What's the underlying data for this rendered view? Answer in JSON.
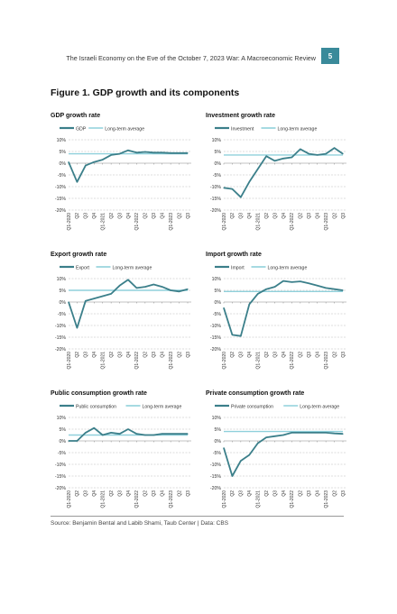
{
  "header": {
    "title": "The Israeli Economy on the Eve of the October 7, 2023 War: A Macroeconomic Review",
    "page": "5"
  },
  "figure": {
    "title": "Figure 1. GDP growth and its components"
  },
  "footer": {
    "source": "Source: Benjamin Bental and Labib Shami, Taub Center | Data: CBS"
  },
  "colors": {
    "series": "#3b7f8a",
    "average": "#8fd0db",
    "grid": "#bbbbbb",
    "axis": "#888888"
  },
  "chart_data": [
    {
      "type": "line",
      "title": "GDP growth rate",
      "ylim": [
        -20,
        10
      ],
      "yticks": [
        "10%",
        "5%",
        "0%",
        "-5%",
        "-10%",
        "-15%",
        "-20%"
      ],
      "categories": [
        "Q1-2020",
        "Q2",
        "Q3",
        "Q4",
        "Q1-2021",
        "Q2",
        "Q3",
        "Q4",
        "Q1-2022",
        "Q2",
        "Q3",
        "Q4",
        "Q1-2023",
        "Q2",
        "Q3"
      ],
      "series": [
        {
          "name": "GDP",
          "values": [
            0.5,
            -8,
            -1,
            0.5,
            1.5,
            3.5,
            4,
            5.5,
            4.5,
            4.8,
            4.5,
            4.5,
            4.3,
            4.3,
            4.3
          ]
        },
        {
          "name": "Long-term average",
          "values": [
            4,
            4,
            4,
            4,
            4,
            4,
            4,
            4,
            4,
            4,
            4,
            4,
            4,
            4,
            4
          ]
        }
      ]
    },
    {
      "type": "line",
      "title": "Investment growth rate",
      "ylim": [
        -20,
        10
      ],
      "yticks": [
        "10%",
        "5%",
        "0%",
        "-5%",
        "-10%",
        "-15%",
        "-20%"
      ],
      "categories": [
        "Q1-2020",
        "Q2",
        "Q3",
        "Q4",
        "Q1-2021",
        "Q2",
        "Q3",
        "Q4",
        "Q1-2022",
        "Q2",
        "Q3",
        "Q4",
        "Q1-2023",
        "Q2",
        "Q3"
      ],
      "series": [
        {
          "name": "Investment",
          "values": [
            -10.5,
            -11,
            -14.5,
            -8,
            -2.5,
            3,
            1,
            2,
            2.5,
            6,
            4,
            3.5,
            4,
            6.5,
            4
          ]
        },
        {
          "name": "Long-term average",
          "values": [
            3.5,
            3.5,
            3.5,
            3.5,
            3.5,
            3.5,
            3.5,
            3.5,
            3.5,
            3.5,
            3.5,
            3.5,
            3.5,
            3.5,
            3.5
          ]
        }
      ]
    },
    {
      "type": "line",
      "title": "Export growth rate",
      "ylim": [
        -20,
        10
      ],
      "yticks": [
        "10%",
        "5%",
        "0%",
        "-5%",
        "-10%",
        "-15%",
        "-20%"
      ],
      "categories": [
        "Q1-2020",
        "Q2",
        "Q3",
        "Q4",
        "Q1-2021",
        "Q2",
        "Q3",
        "Q4",
        "Q1-2022",
        "Q2",
        "Q3",
        "Q4",
        "Q1-2023",
        "Q2",
        "Q3"
      ],
      "series": [
        {
          "name": "Export",
          "values": [
            0,
            -11,
            0.5,
            1.5,
            2.5,
            3.5,
            7,
            9.5,
            6,
            6.5,
            7.5,
            6.5,
            5,
            4.5,
            5.5
          ]
        },
        {
          "name": "Long-term average",
          "values": [
            5,
            5,
            5,
            5,
            5,
            5,
            5,
            5,
            5,
            5,
            5,
            5,
            5,
            5,
            5
          ]
        }
      ]
    },
    {
      "type": "line",
      "title": "Import growth rate",
      "ylim": [
        -20,
        10
      ],
      "yticks": [
        "10%",
        "5%",
        "0%",
        "-5%",
        "-10%",
        "-15%",
        "-20%"
      ],
      "categories": [
        "Q1-2020",
        "Q2",
        "Q3",
        "Q4",
        "Q1-2021",
        "Q2",
        "Q3",
        "Q4",
        "Q1-2022",
        "Q2",
        "Q3",
        "Q4",
        "Q1-2023",
        "Q2",
        "Q3"
      ],
      "series": [
        {
          "name": "Import",
          "values": [
            -2.5,
            -14,
            -14.5,
            -1,
            3.5,
            5.5,
            6.5,
            9,
            8.5,
            8.8,
            8,
            7,
            6,
            5.5,
            5
          ]
        },
        {
          "name": "Long-term average",
          "values": [
            4.5,
            4.5,
            4.5,
            4.5,
            4.5,
            4.5,
            4.5,
            4.5,
            4.5,
            4.5,
            4.5,
            4.5,
            4.5,
            4.5,
            4.5
          ]
        }
      ]
    },
    {
      "type": "line",
      "title": "Public consumption growth rate",
      "ylim": [
        -20,
        10
      ],
      "yticks": [
        "10%",
        "5%",
        "0%",
        "-5%",
        "-10%",
        "-15%",
        "-20%"
      ],
      "categories": [
        "Q1-2020",
        "Q2",
        "Q3",
        "Q4",
        "Q1-2021",
        "Q2",
        "Q3",
        "Q4",
        "Q1-2022",
        "Q2",
        "Q3",
        "Q4",
        "Q1-2023",
        "Q2",
        "Q3"
      ],
      "series": [
        {
          "name": "Public consumption",
          "values": [
            0,
            0,
            3.5,
            5.5,
            2.5,
            3.5,
            3,
            5,
            3,
            2.5,
            2.5,
            3,
            3,
            3,
            3
          ]
        },
        {
          "name": "Long-term average",
          "values": [
            2.5,
            2.5,
            2.5,
            2.5,
            2.5,
            2.5,
            2.5,
            2.5,
            2.5,
            2.5,
            2.5,
            2.5,
            2.5,
            2.5,
            2.5
          ]
        }
      ]
    },
    {
      "type": "line",
      "title": "Private consumption growth rate",
      "ylim": [
        -20,
        10
      ],
      "yticks": [
        "10%",
        "5%",
        "0%",
        "-5%",
        "-10%",
        "-15%",
        "-20%"
      ],
      "categories": [
        "Q1-2020",
        "Q2",
        "Q3",
        "Q4",
        "Q1-2021",
        "Q2",
        "Q3",
        "Q4",
        "Q1-2022",
        "Q2",
        "Q3",
        "Q4",
        "Q1-2023",
        "Q2",
        "Q3"
      ],
      "series": [
        {
          "name": "Private consumption",
          "values": [
            -3,
            -15,
            -8.5,
            -6,
            -1,
            1.5,
            2,
            2.5,
            3.5,
            3.5,
            3.5,
            3.5,
            3.5,
            3.2,
            3
          ]
        },
        {
          "name": "Long-term average",
          "values": [
            4,
            4,
            4,
            4,
            4,
            4,
            4,
            4,
            4,
            4,
            4,
            4,
            4,
            4,
            4
          ]
        }
      ]
    }
  ]
}
